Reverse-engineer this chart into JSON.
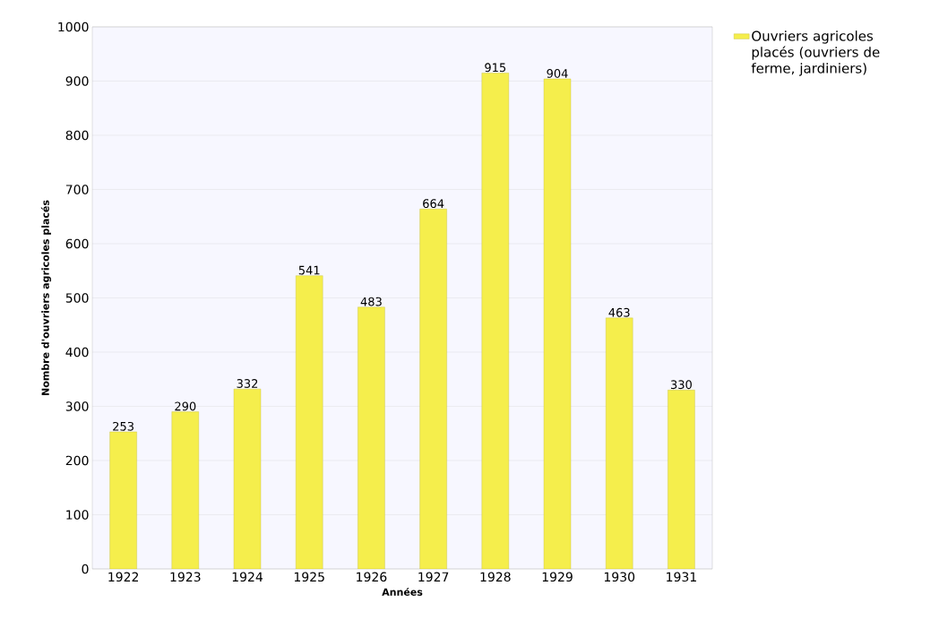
{
  "chart_data": {
    "type": "bar",
    "xlabel": "Années",
    "ylabel": "Nombre d'ouvriers agricoles placés",
    "categories": [
      "1922",
      "1923",
      "1924",
      "1925",
      "1926",
      "1927",
      "1928",
      "1929",
      "1930",
      "1931"
    ],
    "series": [
      {
        "name": "Ouvriers agricoles placés (ouvriers de ferme, jardiniers)",
        "color": "#f5ee4c",
        "values": [
          253,
          290,
          332,
          541,
          483,
          664,
          915,
          904,
          463,
          330
        ]
      }
    ],
    "ylim": [
      0,
      1000
    ],
    "yticks": [
      0,
      100,
      200,
      300,
      400,
      500,
      600,
      700,
      800,
      900,
      1000
    ],
    "grid": "y",
    "legend": "top right",
    "data_labels": true
  }
}
